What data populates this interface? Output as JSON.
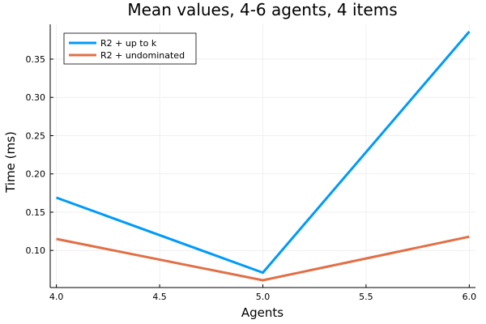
{
  "chart_data": {
    "type": "line",
    "title": "Mean values, 4-6 agents, 4 items",
    "xlabel": "Agents",
    "ylabel": "Time (ms)",
    "x": [
      4.0,
      5.0,
      6.0
    ],
    "series": [
      {
        "name": "R2 + up to k",
        "color": "#009af9",
        "values": [
          0.169,
          0.071,
          0.386
        ]
      },
      {
        "name": "R2 + undominated",
        "color": "#e26f46",
        "values": [
          0.115,
          0.061,
          0.118
        ]
      }
    ],
    "xlim": [
      3.97,
      6.03
    ],
    "ylim": [
      0.0515,
      0.3955
    ],
    "xticks": [
      4.0,
      4.5,
      5.0,
      5.5,
      6.0
    ],
    "xtick_labels": [
      "4.0",
      "4.5",
      "5.0",
      "5.5",
      "6.0"
    ],
    "yticks": [
      0.1,
      0.15,
      0.2,
      0.25,
      0.3,
      0.35
    ],
    "ytick_labels": [
      "0.10",
      "0.15",
      "0.20",
      "0.25",
      "0.30",
      "0.35"
    ],
    "grid": true,
    "legend": "top-left"
  }
}
